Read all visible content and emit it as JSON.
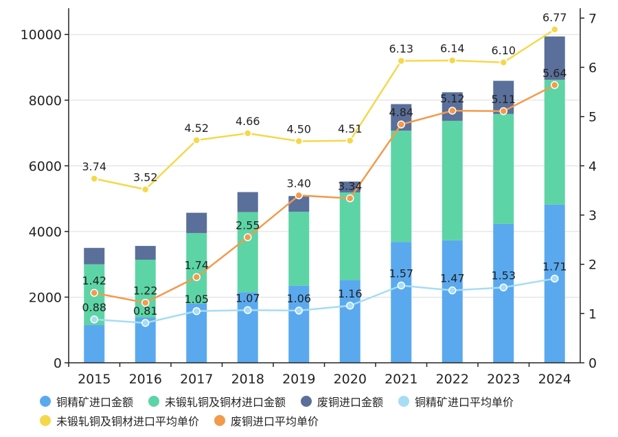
{
  "chart_data": {
    "type": "bar",
    "categories": [
      "2015",
      "2016",
      "2017",
      "2018",
      "2019",
      "2020",
      "2021",
      "2022",
      "2023",
      "2024"
    ],
    "stacked": true,
    "left_axis": {
      "ylim": [
        0,
        10800
      ],
      "ticks": [
        0,
        2000,
        4000,
        6000,
        8000,
        10000
      ]
    },
    "right_axis": {
      "ylim": [
        0,
        7.2
      ],
      "ticks": [
        0,
        1,
        2,
        3,
        4,
        5,
        6,
        7
      ]
    },
    "grid": true,
    "legend_position": "bottom",
    "bar_series": [
      {
        "name": "铜精矿进口金额",
        "color": "#5aa9ee",
        "values": [
          1150,
          1380,
          1800,
          2150,
          2350,
          2520,
          3680,
          3730,
          4230,
          4820
        ]
      },
      {
        "name": "未锻轧铜及铜材进口金额",
        "color": "#5dd4a5",
        "values": [
          1850,
          1760,
          2150,
          2440,
          2250,
          2670,
          3390,
          3640,
          3350,
          3800
        ]
      },
      {
        "name": "废铜进口金额",
        "color": "#5a6f99",
        "values": [
          500,
          420,
          620,
          610,
          480,
          330,
          810,
          870,
          1010,
          1320
        ]
      }
    ],
    "line_series": [
      {
        "name": "铜精矿进口平均单价",
        "color": "#a6dcf5",
        "values": [
          0.88,
          0.81,
          1.05,
          1.07,
          1.06,
          1.16,
          1.57,
          1.47,
          1.53,
          1.71
        ],
        "labels": [
          "0.88",
          "0.81",
          "1.05",
          "1.07",
          "1.06",
          "1.16",
          "1.57",
          "1.47",
          "1.53",
          "1.71"
        ]
      },
      {
        "name": "未锻轧铜及铜材进口平均单价",
        "color": "#f5d84a",
        "values": [
          3.74,
          3.52,
          4.52,
          4.66,
          4.5,
          4.51,
          6.13,
          6.14,
          6.1,
          6.77
        ],
        "labels": [
          "3.74",
          "3.52",
          "4.52",
          "4.66",
          "4.50",
          "4.51",
          "6.13",
          "6.14",
          "6.10",
          "6.77"
        ]
      },
      {
        "name": "废铜进口平均单价",
        "color": "#f39a4b",
        "values": [
          1.42,
          1.22,
          1.74,
          2.55,
          3.4,
          3.34,
          4.84,
          5.12,
          5.11,
          5.64
        ],
        "labels": [
          "1.42",
          "1.22",
          "1.74",
          "2.55",
          "3.40",
          "3.34",
          "4.84",
          "5.12",
          "5.11",
          "5.64"
        ]
      }
    ]
  }
}
